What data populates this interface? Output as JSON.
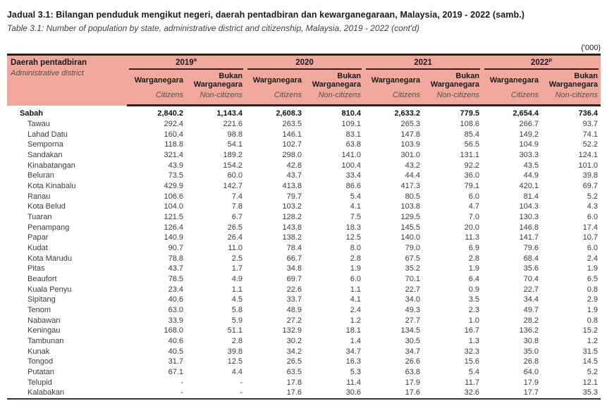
{
  "title_ms": "Jadual 3.1: Bilangan penduduk mengikut negeri, daerah pentadbiran dan kewarganegaraan, Malaysia, 2019 - 2022 (samb.)",
  "title_en": "Table 3.1: Number of population by state, administrative district and citizenship, Malaysia, 2019 - 2022 (cont'd)",
  "unit_label": "('000)",
  "colors": {
    "header_bg": "#f2a89d",
    "rule": "#33201b"
  },
  "table": {
    "row_header_ms": "Daerah pentadbiran",
    "row_header_en": "Administrative district",
    "col_groups": [
      {
        "year": "2019",
        "sup": "a"
      },
      {
        "year": "2020",
        "sup": ""
      },
      {
        "year": "2021",
        "sup": ""
      },
      {
        "year": "2022",
        "sup": "p"
      }
    ],
    "sub_headers": {
      "citizens_ms": "Warganegara",
      "citizens_en": "Citizens",
      "noncitizens_ms": "Bukan Warganegara",
      "noncitizens_en": "Non-citizens"
    },
    "rows": [
      {
        "name": "Sabah",
        "bold": true,
        "values": [
          "2,840.2",
          "1,143.4",
          "2,608.3",
          "810.4",
          "2,633.2",
          "779.5",
          "2,654.4",
          "736.4"
        ]
      },
      {
        "name": "Tawau",
        "bold": false,
        "values": [
          "292.4",
          "221.6",
          "263.5",
          "109.1",
          "265.3",
          "108.6",
          "266.7",
          "93.7"
        ]
      },
      {
        "name": "Lahad Datu",
        "bold": false,
        "values": [
          "160.4",
          "98.8",
          "146.1",
          "83.1",
          "147.8",
          "85.4",
          "149.2",
          "74.1"
        ]
      },
      {
        "name": "Semporna",
        "bold": false,
        "values": [
          "118.8",
          "54.1",
          "102.7",
          "63.8",
          "103.9",
          "56.5",
          "104.9",
          "52.2"
        ]
      },
      {
        "name": "Sandakan",
        "bold": false,
        "values": [
          "321.4",
          "189.2",
          "298.0",
          "141.0",
          "301.0",
          "131.1",
          "303.3",
          "124.1"
        ]
      },
      {
        "name": "Kinabatangan",
        "bold": false,
        "values": [
          "43.9",
          "154.2",
          "42.8",
          "100.4",
          "43.2",
          "92.2",
          "43.5",
          "101.0"
        ]
      },
      {
        "name": "Beluran",
        "bold": false,
        "values": [
          "73.5",
          "60.0",
          "43.7",
          "33.4",
          "44.4",
          "36.0",
          "44.9",
          "39.8"
        ]
      },
      {
        "name": "Kota Kinabalu",
        "bold": false,
        "values": [
          "429.9",
          "142.7",
          "413.8",
          "86.6",
          "417.3",
          "79.1",
          "420.1",
          "69.7"
        ]
      },
      {
        "name": "Ranau",
        "bold": false,
        "values": [
          "106.6",
          "7.4",
          "79.7",
          "5.4",
          "80.5",
          "6.0",
          "81.4",
          "5.2"
        ]
      },
      {
        "name": "Kota Belud",
        "bold": false,
        "values": [
          "104.0",
          "7.8",
          "103.2",
          "4.1",
          "103.8",
          "4.7",
          "104.3",
          "4.3"
        ]
      },
      {
        "name": "Tuaran",
        "bold": false,
        "values": [
          "121.5",
          "6.7",
          "128.2",
          "7.5",
          "129.5",
          "7.0",
          "130.3",
          "6.0"
        ]
      },
      {
        "name": "Penampang",
        "bold": false,
        "values": [
          "126.4",
          "26.5",
          "143.8",
          "18.3",
          "145.5",
          "20.0",
          "146.8",
          "17.4"
        ]
      },
      {
        "name": "Papar",
        "bold": false,
        "values": [
          "140.9",
          "26.4",
          "138.2",
          "12.5",
          "140.0",
          "11.3",
          "141.7",
          "10.7"
        ]
      },
      {
        "name": "Kudat",
        "bold": false,
        "values": [
          "90.7",
          "11.0",
          "78.4",
          "8.0",
          "79.0",
          "6.9",
          "79.6",
          "6.0"
        ]
      },
      {
        "name": "Kota Marudu",
        "bold": false,
        "values": [
          "78.8",
          "2.5",
          "66.7",
          "2.8",
          "67.5",
          "2.8",
          "68.4",
          "2.4"
        ]
      },
      {
        "name": "Pitas",
        "bold": false,
        "values": [
          "43.7",
          "1.7",
          "34.8",
          "1.9",
          "35.2",
          "1.9",
          "35.6",
          "1.9"
        ]
      },
      {
        "name": "Beaufort",
        "bold": false,
        "values": [
          "78.5",
          "4.9",
          "69.7",
          "6.0",
          "70.1",
          "6.4",
          "70.4",
          "6.5"
        ]
      },
      {
        "name": "Kuala Penyu",
        "bold": false,
        "values": [
          "23.4",
          "1.1",
          "22.6",
          "1.1",
          "22.7",
          "0.9",
          "22.7",
          "0.8"
        ]
      },
      {
        "name": "Sipitang",
        "bold": false,
        "values": [
          "40.6",
          "4.5",
          "33.7",
          "4.1",
          "34.0",
          "3.5",
          "34.4",
          "2.9"
        ]
      },
      {
        "name": "Tenom",
        "bold": false,
        "values": [
          "63.0",
          "5.8",
          "48.9",
          "2.4",
          "49.3",
          "2.3",
          "49.7",
          "1.9"
        ]
      },
      {
        "name": "Nabawan",
        "bold": false,
        "values": [
          "33.9",
          "5.9",
          "27.2",
          "1.2",
          "27.7",
          "1.0",
          "28.2",
          "0.8"
        ]
      },
      {
        "name": "Keningau",
        "bold": false,
        "values": [
          "168.0",
          "51.1",
          "132.9",
          "18.1",
          "134.5",
          "16.7",
          "136.2",
          "15.2"
        ]
      },
      {
        "name": "Tambunan",
        "bold": false,
        "values": [
          "40.6",
          "2.8",
          "30.2",
          "1.4",
          "30.5",
          "1.3",
          "30.8",
          "1.2"
        ]
      },
      {
        "name": "Kunak",
        "bold": false,
        "values": [
          "40.5",
          "39.8",
          "34.2",
          "34.7",
          "34.7",
          "32.3",
          "35.0",
          "31.5"
        ]
      },
      {
        "name": "Tongod",
        "bold": false,
        "values": [
          "31.7",
          "12.5",
          "26.5",
          "16.3",
          "26.6",
          "15.6",
          "26.8",
          "14.5"
        ]
      },
      {
        "name": "Putatan",
        "bold": false,
        "values": [
          "67.1",
          "4.4",
          "63.5",
          "5.3",
          "63.8",
          "5.4",
          "64.0",
          "5.2"
        ]
      },
      {
        "name": "Telupid",
        "bold": false,
        "values": [
          "-",
          "-",
          "17.8",
          "11.4",
          "17.9",
          "11.7",
          "17.9",
          "12.1"
        ]
      },
      {
        "name": "Kalabakan",
        "bold": false,
        "values": [
          "-",
          "-",
          "17.6",
          "30.6",
          "17.6",
          "32.6",
          "17.7",
          "35.3"
        ]
      }
    ]
  }
}
